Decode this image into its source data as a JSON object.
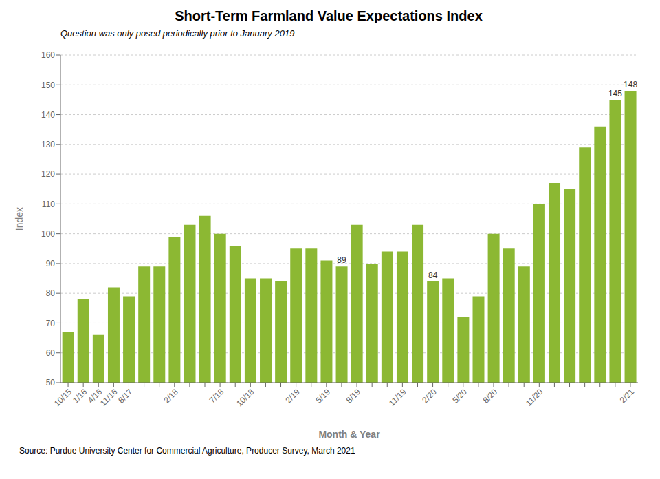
{
  "chart_data": {
    "type": "bar",
    "title": "Short-Term Farmland Value Expectations Index",
    "subtitle": "Question was only posed periodically prior to January 2019",
    "source": "Source: Purdue University Center for Commercial Agriculture, Producer Survey, March 2021",
    "xlabel": "Month & Year",
    "ylabel": "Index",
    "categories": [
      "10/15",
      "1/16",
      "4/16",
      "11/16",
      "8/17",
      null,
      null,
      "2/18",
      null,
      null,
      "7/18",
      null,
      "10/18",
      null,
      null,
      "2/19",
      null,
      "5/19",
      null,
      "8/19",
      null,
      null,
      "11/19",
      null,
      "2/20",
      null,
      "5/20",
      null,
      "8/20",
      null,
      null,
      "11/20",
      null,
      null,
      null,
      null,
      null,
      "2/21"
    ],
    "values": [
      67,
      78,
      66,
      82,
      79,
      89,
      89,
      99,
      103,
      106,
      100,
      96,
      85,
      85,
      84,
      95,
      95,
      91,
      89,
      103,
      90,
      94,
      94,
      103,
      84,
      85,
      72,
      79,
      100,
      95,
      89,
      110,
      117,
      115,
      129,
      136,
      145,
      148
    ],
    "value_labels": [
      null,
      null,
      null,
      null,
      null,
      null,
      null,
      null,
      null,
      null,
      null,
      null,
      null,
      null,
      null,
      null,
      null,
      null,
      "89",
      null,
      null,
      null,
      null,
      null,
      "84",
      null,
      null,
      null,
      null,
      null,
      null,
      null,
      null,
      null,
      null,
      null,
      "145",
      "148"
    ],
    "color": "#8cb833",
    "ylim": [
      50,
      160
    ],
    "yticks": [
      50,
      60,
      70,
      80,
      90,
      100,
      110,
      120,
      130,
      140,
      150,
      160
    ],
    "grid": true
  }
}
